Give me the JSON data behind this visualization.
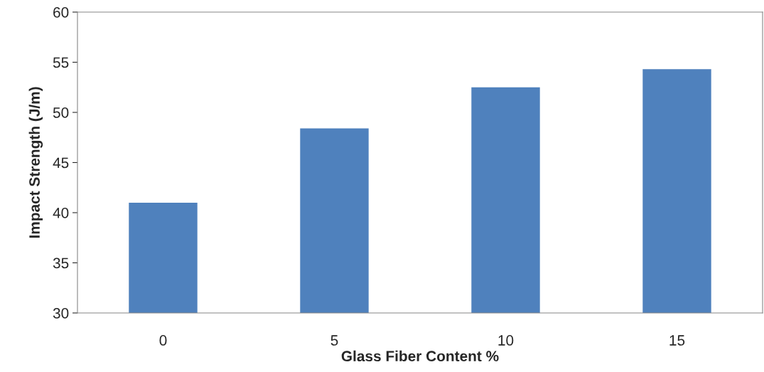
{
  "chart_data": {
    "type": "bar",
    "xlabel": "Glass Fiber Content %",
    "ylabel": "Impact Strength (J/m)",
    "categories": [
      "0",
      "5",
      "10",
      "15"
    ],
    "values": [
      41.0,
      48.4,
      52.5,
      54.3
    ],
    "color": "#4f81bd",
    "ylim": [
      30,
      60
    ],
    "yticks": [
      30,
      35,
      40,
      45,
      50,
      55,
      60
    ],
    "grid": false,
    "legend": false
  }
}
